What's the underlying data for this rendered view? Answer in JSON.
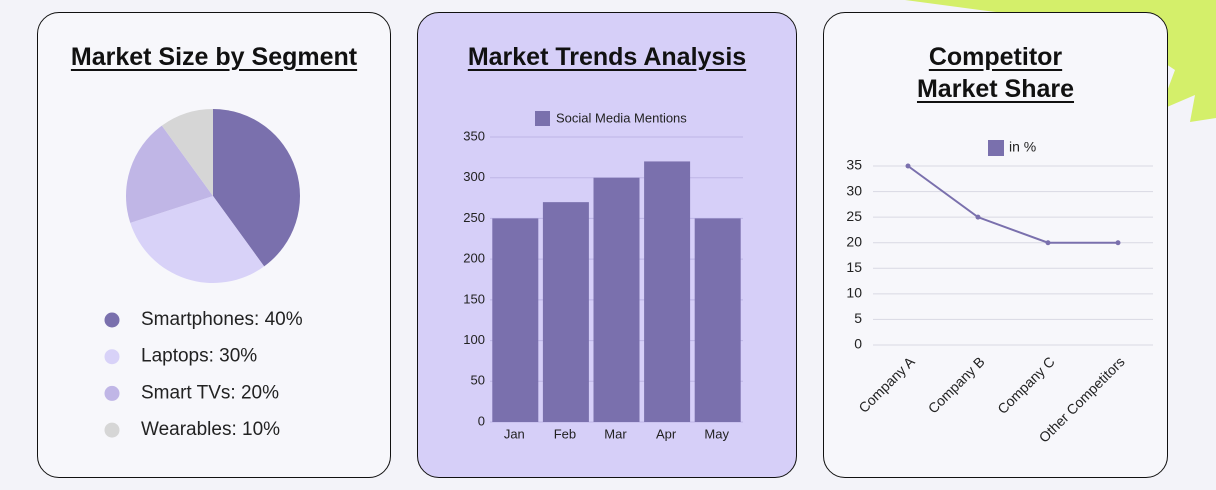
{
  "chart_data": [
    {
      "type": "pie",
      "title": "Market Size by Segment",
      "labels": [
        "Smartphones: 40%",
        "Laptops: 30%",
        "Smart TVs: 20%",
        "Wearables: 10%"
      ],
      "values": [
        40,
        30,
        20,
        10
      ],
      "colors": [
        "#7a70ad",
        "#d8d2f8",
        "#c0b6e6",
        "#d6d6d6"
      ]
    },
    {
      "type": "bar",
      "title": "Market Trends Analysis",
      "categories": [
        "Jan",
        "Feb",
        "Mar",
        "Apr",
        "May"
      ],
      "series": [
        {
          "name": "Social Media Mentions",
          "color": "#7a70ad",
          "values": [
            250,
            270,
            300,
            320,
            250
          ]
        }
      ],
      "ylim": [
        0,
        350
      ],
      "yticks": [
        0,
        50,
        100,
        150,
        200,
        250,
        300,
        350
      ],
      "grid": true
    },
    {
      "type": "line",
      "title": "Competitor Market Share",
      "categories": [
        "Company A",
        "Company B",
        "Company C",
        "Other Competitors"
      ],
      "series": [
        {
          "name": "in %",
          "color": "#7a70ad",
          "values": [
            35,
            25,
            20,
            20
          ]
        }
      ],
      "ylim": [
        0,
        35
      ],
      "yticks": [
        0,
        5,
        10,
        15,
        20,
        25,
        30,
        35
      ],
      "grid": true
    }
  ]
}
